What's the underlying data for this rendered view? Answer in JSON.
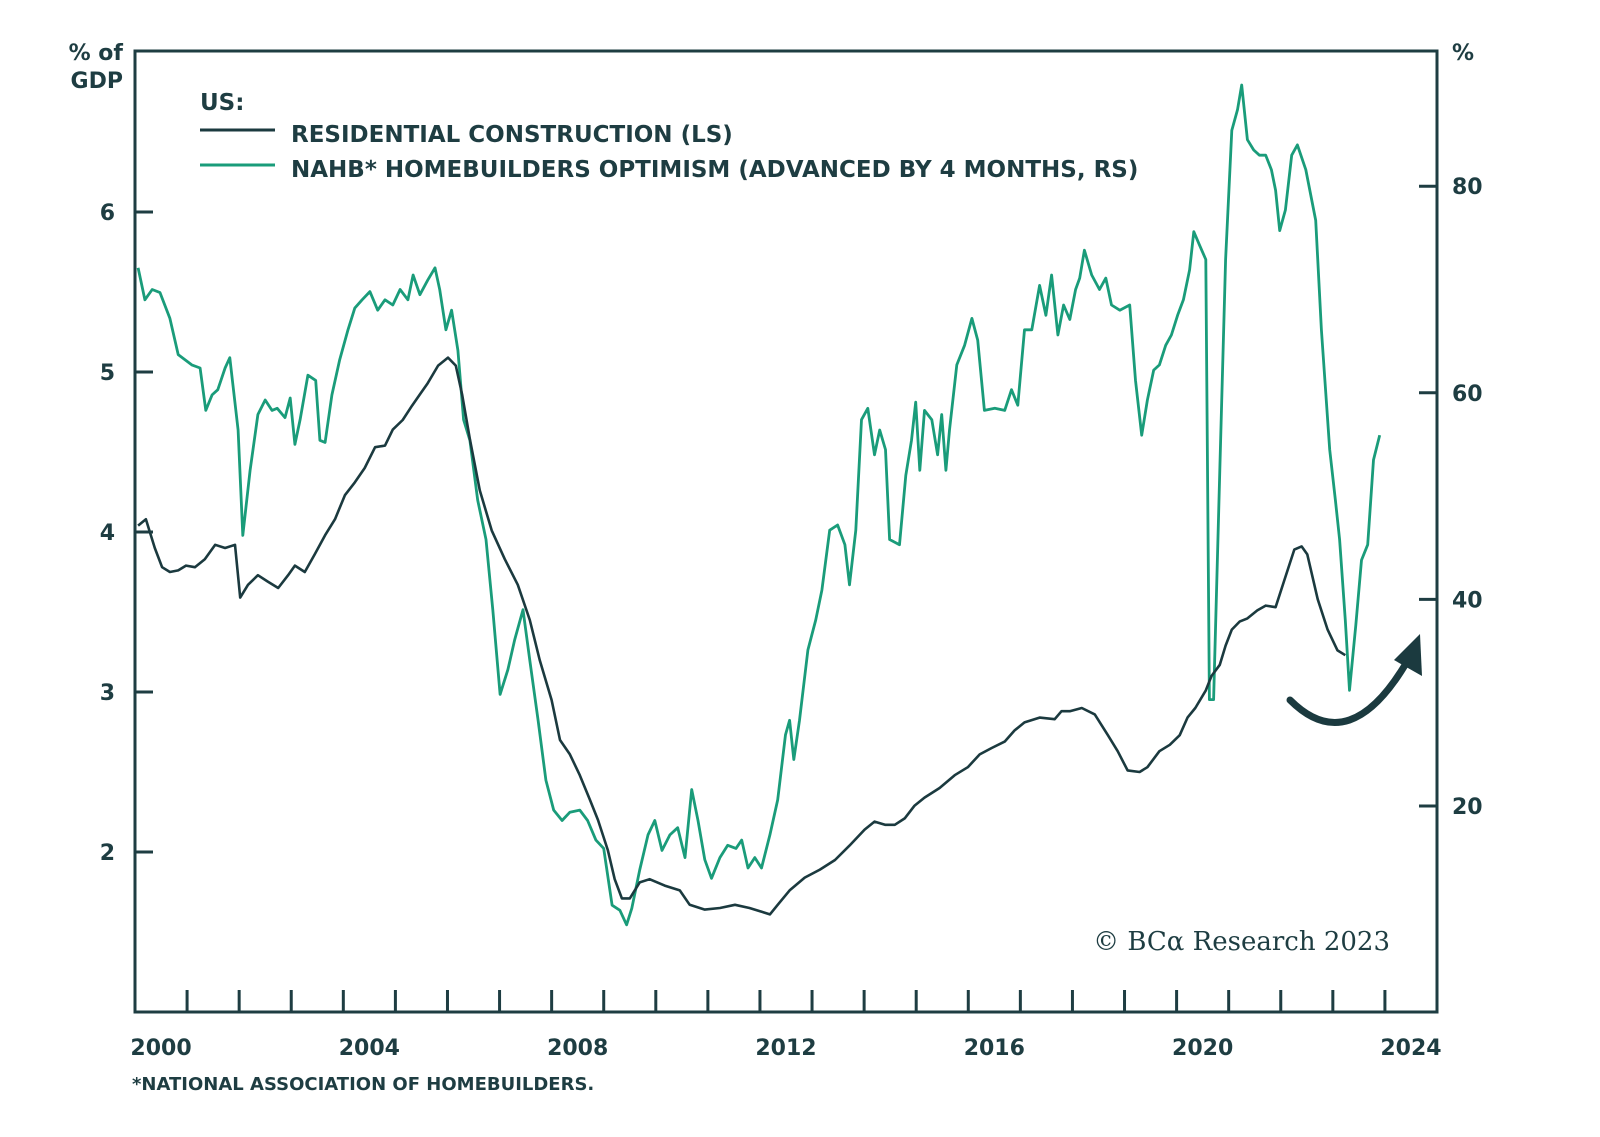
{
  "chart_data": {
    "type": "line",
    "title": "",
    "legend_heading": "US:",
    "legend_position": "top-left",
    "xlabel": "",
    "ylabel_left": "% of GDP",
    "ylabel_left_lines": [
      "% of",
      "GDP"
    ],
    "ylabel_right": "%",
    "xlim": [
      2000,
      2025
    ],
    "ylim_left": [
      1,
      6.9
    ],
    "ylim_right": [
      0,
      92
    ],
    "x_ticks": [
      2000,
      2004,
      2008,
      2012,
      2016,
      2020,
      2024
    ],
    "x_tick_labels": [
      "2000",
      "2004",
      "2008",
      "2012",
      "2016",
      "2020",
      "2024"
    ],
    "y_ticks_left": [
      2,
      3,
      4,
      5,
      6
    ],
    "y_tick_labels_left": [
      "2",
      "3",
      "4",
      "5",
      "6"
    ],
    "y_ticks_right": [
      20,
      40,
      60,
      80
    ],
    "y_tick_labels_right": [
      "20",
      "40",
      "60",
      "80"
    ],
    "grid": false,
    "footnote": "*NATIONAL ASSOCIATION OF HOMEBUILDERS.",
    "copyright": "© BCα Research 2023",
    "annotation": "curved upward arrow near 2023 indicating expected rebound",
    "series": [
      {
        "name": "RESIDENTIAL CONSTRUCTION (LS)",
        "axis": "left",
        "color": "#1b3a3f",
        "x": [
          2000.06,
          2000.21,
          2000.38,
          2000.52,
          2000.67,
          2000.83,
          2000.98,
          2001.15,
          2001.34,
          2001.54,
          2001.73,
          2001.92,
          2002.02,
          2002.17,
          2002.36,
          2002.55,
          2002.75,
          2002.94,
          2003.07,
          2003.26,
          2003.45,
          2003.65,
          2003.84,
          2004.03,
          2004.22,
          2004.41,
          2004.61,
          2004.8,
          2004.95,
          2005.14,
          2005.32,
          2005.47,
          2005.62,
          2005.82,
          2006.01,
          2006.16,
          2006.28,
          2006.43,
          2006.62,
          2006.85,
          2007.1,
          2007.35,
          2007.58,
          2007.77,
          2008.0,
          2008.16,
          2008.35,
          2008.54,
          2008.73,
          2008.89,
          2009.08,
          2009.21,
          2009.35,
          2009.5,
          2009.69,
          2009.88,
          2010.17,
          2010.46,
          2010.65,
          2010.94,
          2011.23,
          2011.52,
          2011.8,
          2012.0,
          2012.19,
          2012.34,
          2012.57,
          2012.86,
          2013.15,
          2013.44,
          2013.72,
          2014.01,
          2014.2,
          2014.4,
          2014.59,
          2014.78,
          2014.97,
          2015.16,
          2015.45,
          2015.74,
          2015.99,
          2016.22,
          2016.45,
          2016.7,
          2016.89,
          2017.08,
          2017.37,
          2017.66,
          2017.79,
          2017.95,
          2018.18,
          2018.43,
          2018.68,
          2018.87,
          2019.06,
          2019.29,
          2019.44,
          2019.67,
          2019.87,
          2020.06,
          2020.21,
          2020.36,
          2020.56,
          2020.67,
          2020.83,
          2020.94,
          2021.06,
          2021.21,
          2021.36,
          2021.55,
          2021.71,
          2021.9,
          2022.07,
          2022.26,
          2022.4,
          2022.51,
          2022.71,
          2022.9,
          2023.09,
          2023.24
        ],
        "values": [
          4.04,
          4.08,
          3.9,
          3.78,
          3.75,
          3.76,
          3.79,
          3.78,
          3.83,
          3.92,
          3.9,
          3.92,
          3.59,
          3.67,
          3.73,
          3.69,
          3.65,
          3.73,
          3.79,
          3.75,
          3.86,
          3.98,
          4.08,
          4.23,
          4.31,
          4.4,
          4.53,
          4.54,
          4.64,
          4.7,
          4.79,
          4.86,
          4.93,
          5.04,
          5.09,
          5.04,
          4.86,
          4.58,
          4.26,
          4.01,
          3.83,
          3.67,
          3.45,
          3.2,
          2.95,
          2.7,
          2.61,
          2.48,
          2.33,
          2.2,
          2.01,
          1.83,
          1.71,
          1.71,
          1.81,
          1.83,
          1.79,
          1.76,
          1.67,
          1.64,
          1.65,
          1.67,
          1.65,
          1.63,
          1.61,
          1.67,
          1.76,
          1.84,
          1.89,
          1.95,
          2.04,
          2.14,
          2.19,
          2.17,
          2.17,
          2.21,
          2.29,
          2.34,
          2.4,
          2.48,
          2.53,
          2.61,
          2.65,
          2.69,
          2.76,
          2.81,
          2.84,
          2.83,
          2.88,
          2.88,
          2.9,
          2.86,
          2.73,
          2.63,
          2.51,
          2.5,
          2.53,
          2.63,
          2.67,
          2.73,
          2.84,
          2.9,
          3.01,
          3.1,
          3.17,
          3.29,
          3.39,
          3.44,
          3.46,
          3.51,
          3.54,
          3.53,
          3.7,
          3.89,
          3.91,
          3.86,
          3.58,
          3.39,
          3.26,
          3.23
        ]
      },
      {
        "name": "NAHB* HOMEBUILDERS OPTIMISM (ADVANCED BY 4 MONTHS, RS)",
        "axis": "right",
        "color": "#1a9c7a",
        "x": [
          2000.06,
          2000.19,
          2000.33,
          2000.48,
          2000.67,
          2000.83,
          2000.96,
          2001.09,
          2001.25,
          2001.36,
          2001.48,
          2001.59,
          2001.73,
          2001.82,
          2001.98,
          2002.07,
          2002.21,
          2002.36,
          2002.5,
          2002.63,
          2002.73,
          2002.88,
          2002.98,
          2003.07,
          2003.17,
          2003.32,
          2003.47,
          2003.55,
          2003.65,
          2003.78,
          2003.93,
          2004.09,
          2004.22,
          2004.36,
          2004.51,
          2004.66,
          2004.8,
          2004.95,
          2005.09,
          2005.24,
          2005.34,
          2005.47,
          2005.62,
          2005.76,
          2005.85,
          2005.97,
          2006.08,
          2006.2,
          2006.31,
          2006.43,
          2006.58,
          2006.74,
          2006.87,
          2007.01,
          2007.16,
          2007.29,
          2007.45,
          2007.58,
          2007.74,
          2007.89,
          2008.04,
          2008.2,
          2008.35,
          2008.54,
          2008.69,
          2008.85,
          2009.0,
          2009.16,
          2009.31,
          2009.44,
          2009.54,
          2009.69,
          2009.85,
          2009.98,
          2010.12,
          2010.27,
          2010.42,
          2010.56,
          2010.69,
          2010.81,
          2010.94,
          2011.07,
          2011.23,
          2011.38,
          2011.54,
          2011.65,
          2011.77,
          2011.9,
          2012.03,
          2012.19,
          2012.34,
          2012.49,
          2012.57,
          2012.65,
          2012.76,
          2012.92,
          2013.07,
          2013.19,
          2013.34,
          2013.49,
          2013.63,
          2013.72,
          2013.84,
          2013.95,
          2014.07,
          2014.2,
          2014.3,
          2014.41,
          2014.49,
          2014.68,
          2014.8,
          2014.91,
          2014.99,
          2015.07,
          2015.16,
          2015.3,
          2015.41,
          2015.49,
          2015.57,
          2015.64,
          2015.78,
          2015.93,
          2016.07,
          2016.18,
          2016.31,
          2016.51,
          2016.7,
          2016.83,
          2016.95,
          2017.08,
          2017.22,
          2017.37,
          2017.49,
          2017.6,
          2017.72,
          2017.83,
          2017.95,
          2018.06,
          2018.14,
          2018.23,
          2018.37,
          2018.52,
          2018.64,
          2018.75,
          2018.91,
          2019.1,
          2019.21,
          2019.33,
          2019.44,
          2019.56,
          2019.67,
          2019.79,
          2019.9,
          2020.02,
          2020.13,
          2020.25,
          2020.33,
          2020.44,
          2020.56,
          2020.63,
          2020.71,
          2020.83,
          2020.94,
          2021.06,
          2021.17,
          2021.25,
          2021.36,
          2021.48,
          2021.59,
          2021.71,
          2021.82,
          2021.9,
          2021.98,
          2022.09,
          2022.21,
          2022.32,
          2022.48,
          2022.67,
          2022.78,
          2022.94,
          2023.05,
          2023.13,
          2023.24,
          2023.32,
          2023.44,
          2023.55,
          2023.67,
          2023.78,
          2023.9
        ],
        "values": [
          72.1,
          69.0,
          70.0,
          69.7,
          67.2,
          63.7,
          63.2,
          62.7,
          62.4,
          58.3,
          59.8,
          60.3,
          62.4,
          63.4,
          56.4,
          46.2,
          52.5,
          57.9,
          59.3,
          58.3,
          58.5,
          57.6,
          59.5,
          55.0,
          57.4,
          61.7,
          61.2,
          55.4,
          55.2,
          59.8,
          63.2,
          66.1,
          68.2,
          69.0,
          69.8,
          68.0,
          69.0,
          68.5,
          70.0,
          69.0,
          71.4,
          69.5,
          70.9,
          72.1,
          70.0,
          66.1,
          68.0,
          64.1,
          57.4,
          55.4,
          49.6,
          45.8,
          39.0,
          30.8,
          33.2,
          36.1,
          39.0,
          34.1,
          28.3,
          22.5,
          19.6,
          18.6,
          19.4,
          19.6,
          18.6,
          16.7,
          15.9,
          10.4,
          9.9,
          8.5,
          10.1,
          13.8,
          17.2,
          18.6,
          15.7,
          17.2,
          17.9,
          15.0,
          21.6,
          18.6,
          14.8,
          13.0,
          15.0,
          16.2,
          15.9,
          16.7,
          14.0,
          15.0,
          14.0,
          17.2,
          20.6,
          26.9,
          28.3,
          24.5,
          28.3,
          35.1,
          38.0,
          40.9,
          46.7,
          47.2,
          45.3,
          41.4,
          46.7,
          57.4,
          58.5,
          54.0,
          56.4,
          54.5,
          45.8,
          45.3,
          52.0,
          55.4,
          59.1,
          52.5,
          58.3,
          57.4,
          54.0,
          57.9,
          52.5,
          56.4,
          62.7,
          64.6,
          67.2,
          65.1,
          58.3,
          58.5,
          58.3,
          60.3,
          58.8,
          66.1,
          66.1,
          70.4,
          67.5,
          71.4,
          65.6,
          68.5,
          67.1,
          70.0,
          71.1,
          73.8,
          71.4,
          70.0,
          71.1,
          68.5,
          68.0,
          68.5,
          61.2,
          55.9,
          59.3,
          62.2,
          62.7,
          64.6,
          65.6,
          67.5,
          69.0,
          71.9,
          75.6,
          74.3,
          72.9,
          30.3,
          30.3,
          52.5,
          72.9,
          85.4,
          87.4,
          89.8,
          84.5,
          83.5,
          83.0,
          83.0,
          81.6,
          79.6,
          75.7,
          77.7,
          83.0,
          84.0,
          81.6,
          76.7,
          66.1,
          54.5,
          49.6,
          45.8,
          38.0,
          31.2,
          37.5,
          43.8,
          45.3,
          53.5,
          55.9
        ]
      }
    ]
  }
}
